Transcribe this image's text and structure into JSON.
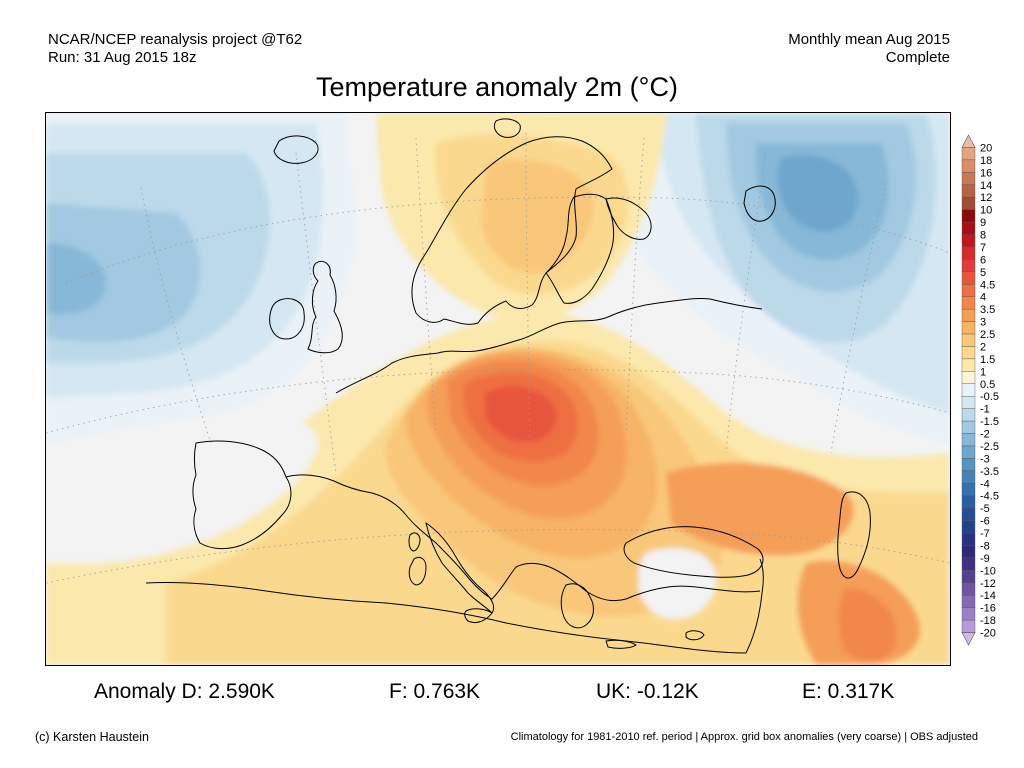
{
  "header": {
    "left_line1": "NCAR/NCEP reanalysis project @T62",
    "left_line2": "Run: 31 Aug 2015 18z",
    "right_line1": "Monthly mean Aug 2015",
    "right_line2": "Complete"
  },
  "title": "Temperature anomaly 2m (°C)",
  "legend": {
    "levels": [
      "20",
      "18",
      "16",
      "14",
      "12",
      "10",
      "9",
      "8",
      "7",
      "6",
      "5",
      "4.5",
      "4",
      "3.5",
      "3",
      "2.5",
      "2",
      "1.5",
      "1",
      "0.5",
      "-0.5",
      "-1",
      "-1.5",
      "-2",
      "-2.5",
      "-3",
      "-3.5",
      "-4",
      "-4.5",
      "-5",
      "-6",
      "-7",
      "-8",
      "-9",
      "-10",
      "-12",
      "-14",
      "-16",
      "-18",
      "-20"
    ],
    "colors": [
      "#eebba0",
      "#e4a482",
      "#d98e6a",
      "#c87a56",
      "#b36544",
      "#9c4f33",
      "#8b0b0b",
      "#a50f15",
      "#c4161c",
      "#d52b2b",
      "#e03b3b",
      "#e8553c",
      "#ee6f43",
      "#f2874c",
      "#f59e58",
      "#f7b466",
      "#f9c77a",
      "#fad98f",
      "#fbe8ac",
      "#fdf5d8",
      "#eaf2f8",
      "#d5e7f2",
      "#bcd9ea",
      "#a2c9e1",
      "#88b8d8",
      "#6ea6cd",
      "#5694c2",
      "#4582b8",
      "#3671ad",
      "#2a5ea1",
      "#234e96",
      "#23408a",
      "#28327e",
      "#2f2872",
      "#40307f",
      "#56418f",
      "#6d55a1",
      "#8469b3",
      "#9c80c6",
      "#b89ad8",
      "#d2b8ea"
    ]
  },
  "map_colors": {
    "ocean_background": "#f3f3f3",
    "warm_anomaly": [
      "#fbe8ac",
      "#fad98f",
      "#f9c77a",
      "#f7b466",
      "#f59e58",
      "#f2874c",
      "#ee6f43",
      "#e8553c"
    ],
    "cool_anomaly": [
      "#eaf2f8",
      "#d5e7f2",
      "#bcd9ea",
      "#a2c9e1",
      "#88b8d8",
      "#6ea6cd"
    ],
    "coastline": "#000000"
  },
  "stats": {
    "d": "Anomaly D: 2.590K",
    "f": "F: 0.763K",
    "uk": "UK: -0.12K",
    "e": "E: 0.317K"
  },
  "footer": {
    "credit": "(c) Karsten Haustein",
    "note": "Climatology for 1981-2010 ref. period | Approx. grid box anomalies (very coarse) | OBS adjusted"
  }
}
